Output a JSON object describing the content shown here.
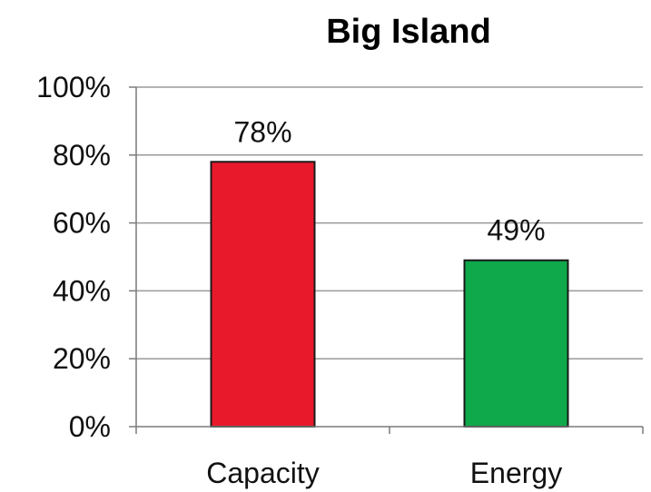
{
  "chart_data": {
    "type": "bar",
    "title": "Big Island",
    "categories": [
      "Capacity",
      "Energy"
    ],
    "values": [
      78,
      49
    ],
    "data_labels": [
      "78%",
      "49%"
    ],
    "colors": [
      "#e8192b",
      "#0fa84a"
    ],
    "ylim": [
      0,
      100
    ],
    "yticks": [
      0,
      20,
      40,
      60,
      80,
      100
    ],
    "ytick_labels": [
      "0%",
      "20%",
      "40%",
      "60%",
      "80%",
      "100%"
    ],
    "xlabel": "",
    "ylabel": "",
    "grid": true,
    "legend": "none"
  }
}
